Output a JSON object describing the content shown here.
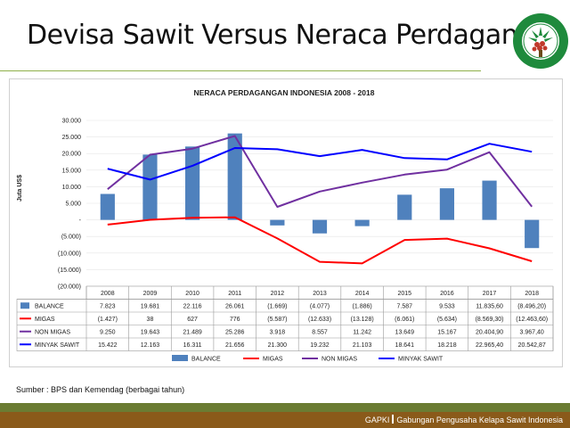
{
  "slide": {
    "title": "Devisa Sawit Versus Neraca Perdagangan",
    "source": "Sumber : BPS dan Kemendag (berbagai tahun)",
    "footer_brand": "GAPKI",
    "footer_name": "Gabungan Pengusaha Kelapa Sawit Indonesia",
    "logo_text": "GABUNGAN PENGUSAHA KELAPA SAWIT INDONESIA",
    "logo_abbr": "GAPKI"
  },
  "colors": {
    "balance": "#4f81bd",
    "migas": "#ff0000",
    "non_migas": "#7030a0",
    "minyak_sawit": "#0000ff",
    "footer_green": "#6b7c33",
    "footer_brown": "#8a5a1a",
    "logo_green": "#1e8a3c"
  },
  "chart_data": {
    "type": "bar",
    "title": "NERACA PERDAGANGAN INDONESIA 2008 - 2018",
    "ylabel": "Juta US$",
    "ylim": [
      -20000,
      30000
    ],
    "yticks": [
      "30.000",
      "25.000",
      "20.000",
      "15.000",
      "10.000",
      "5.000",
      "-",
      "(5.000)",
      "(10.000)",
      "(15.000)",
      "(20.000)"
    ],
    "categories": [
      "2008",
      "2009",
      "2010",
      "2011",
      "2012",
      "2013",
      "2014",
      "2015",
      "2016",
      "2017",
      "2018"
    ],
    "legend_position": "bottom",
    "series": [
      {
        "name": "BALANCE",
        "type": "bar",
        "color": "#4f81bd",
        "values": [
          7823,
          19681,
          22116,
          26061,
          -1669,
          -4077,
          -1886,
          7587,
          9533,
          11835.6,
          -8496.2
        ],
        "labels": [
          "7.823",
          "19.681",
          "22.116",
          "26.061",
          "(1.669)",
          "(4.077)",
          "(1.886)",
          "7.587",
          "9.533",
          "11.835,60",
          "(8.496,20)"
        ]
      },
      {
        "name": "MIGAS",
        "type": "line",
        "color": "#ff0000",
        "values": [
          -1427,
          38,
          627,
          776,
          -5587,
          -12633,
          -13128,
          -6061,
          -5634,
          -8569.3,
          -12463.6
        ],
        "labels": [
          "(1.427)",
          "38",
          "627",
          "776",
          "(5.587)",
          "(12.633)",
          "(13.128)",
          "(6.061)",
          "(5.634)",
          "(8.569,30)",
          "(12.463,60)"
        ]
      },
      {
        "name": "NON MIGAS",
        "type": "line",
        "color": "#7030a0",
        "values": [
          9250,
          19643,
          21489,
          25286,
          3918,
          8557,
          11242,
          13649,
          15167,
          20404.9,
          3967.4
        ],
        "labels": [
          "9.250",
          "19.643",
          "21.489",
          "25.286",
          "3.918",
          "8.557",
          "11.242",
          "13.649",
          "15.167",
          "20.404,90",
          "3.967,40"
        ]
      },
      {
        "name": "MINYAK SAWIT",
        "type": "line",
        "color": "#0000ff",
        "values": [
          15422,
          12163,
          16311,
          21656,
          21300,
          19232,
          21103,
          18641,
          18218,
          22965.4,
          20542.87
        ],
        "labels": [
          "15.422",
          "12.163",
          "16.311",
          "21.656",
          "21.300",
          "19.232",
          "21.103",
          "18.641",
          "18.218",
          "22.965,40",
          "20.542,87"
        ]
      }
    ]
  }
}
